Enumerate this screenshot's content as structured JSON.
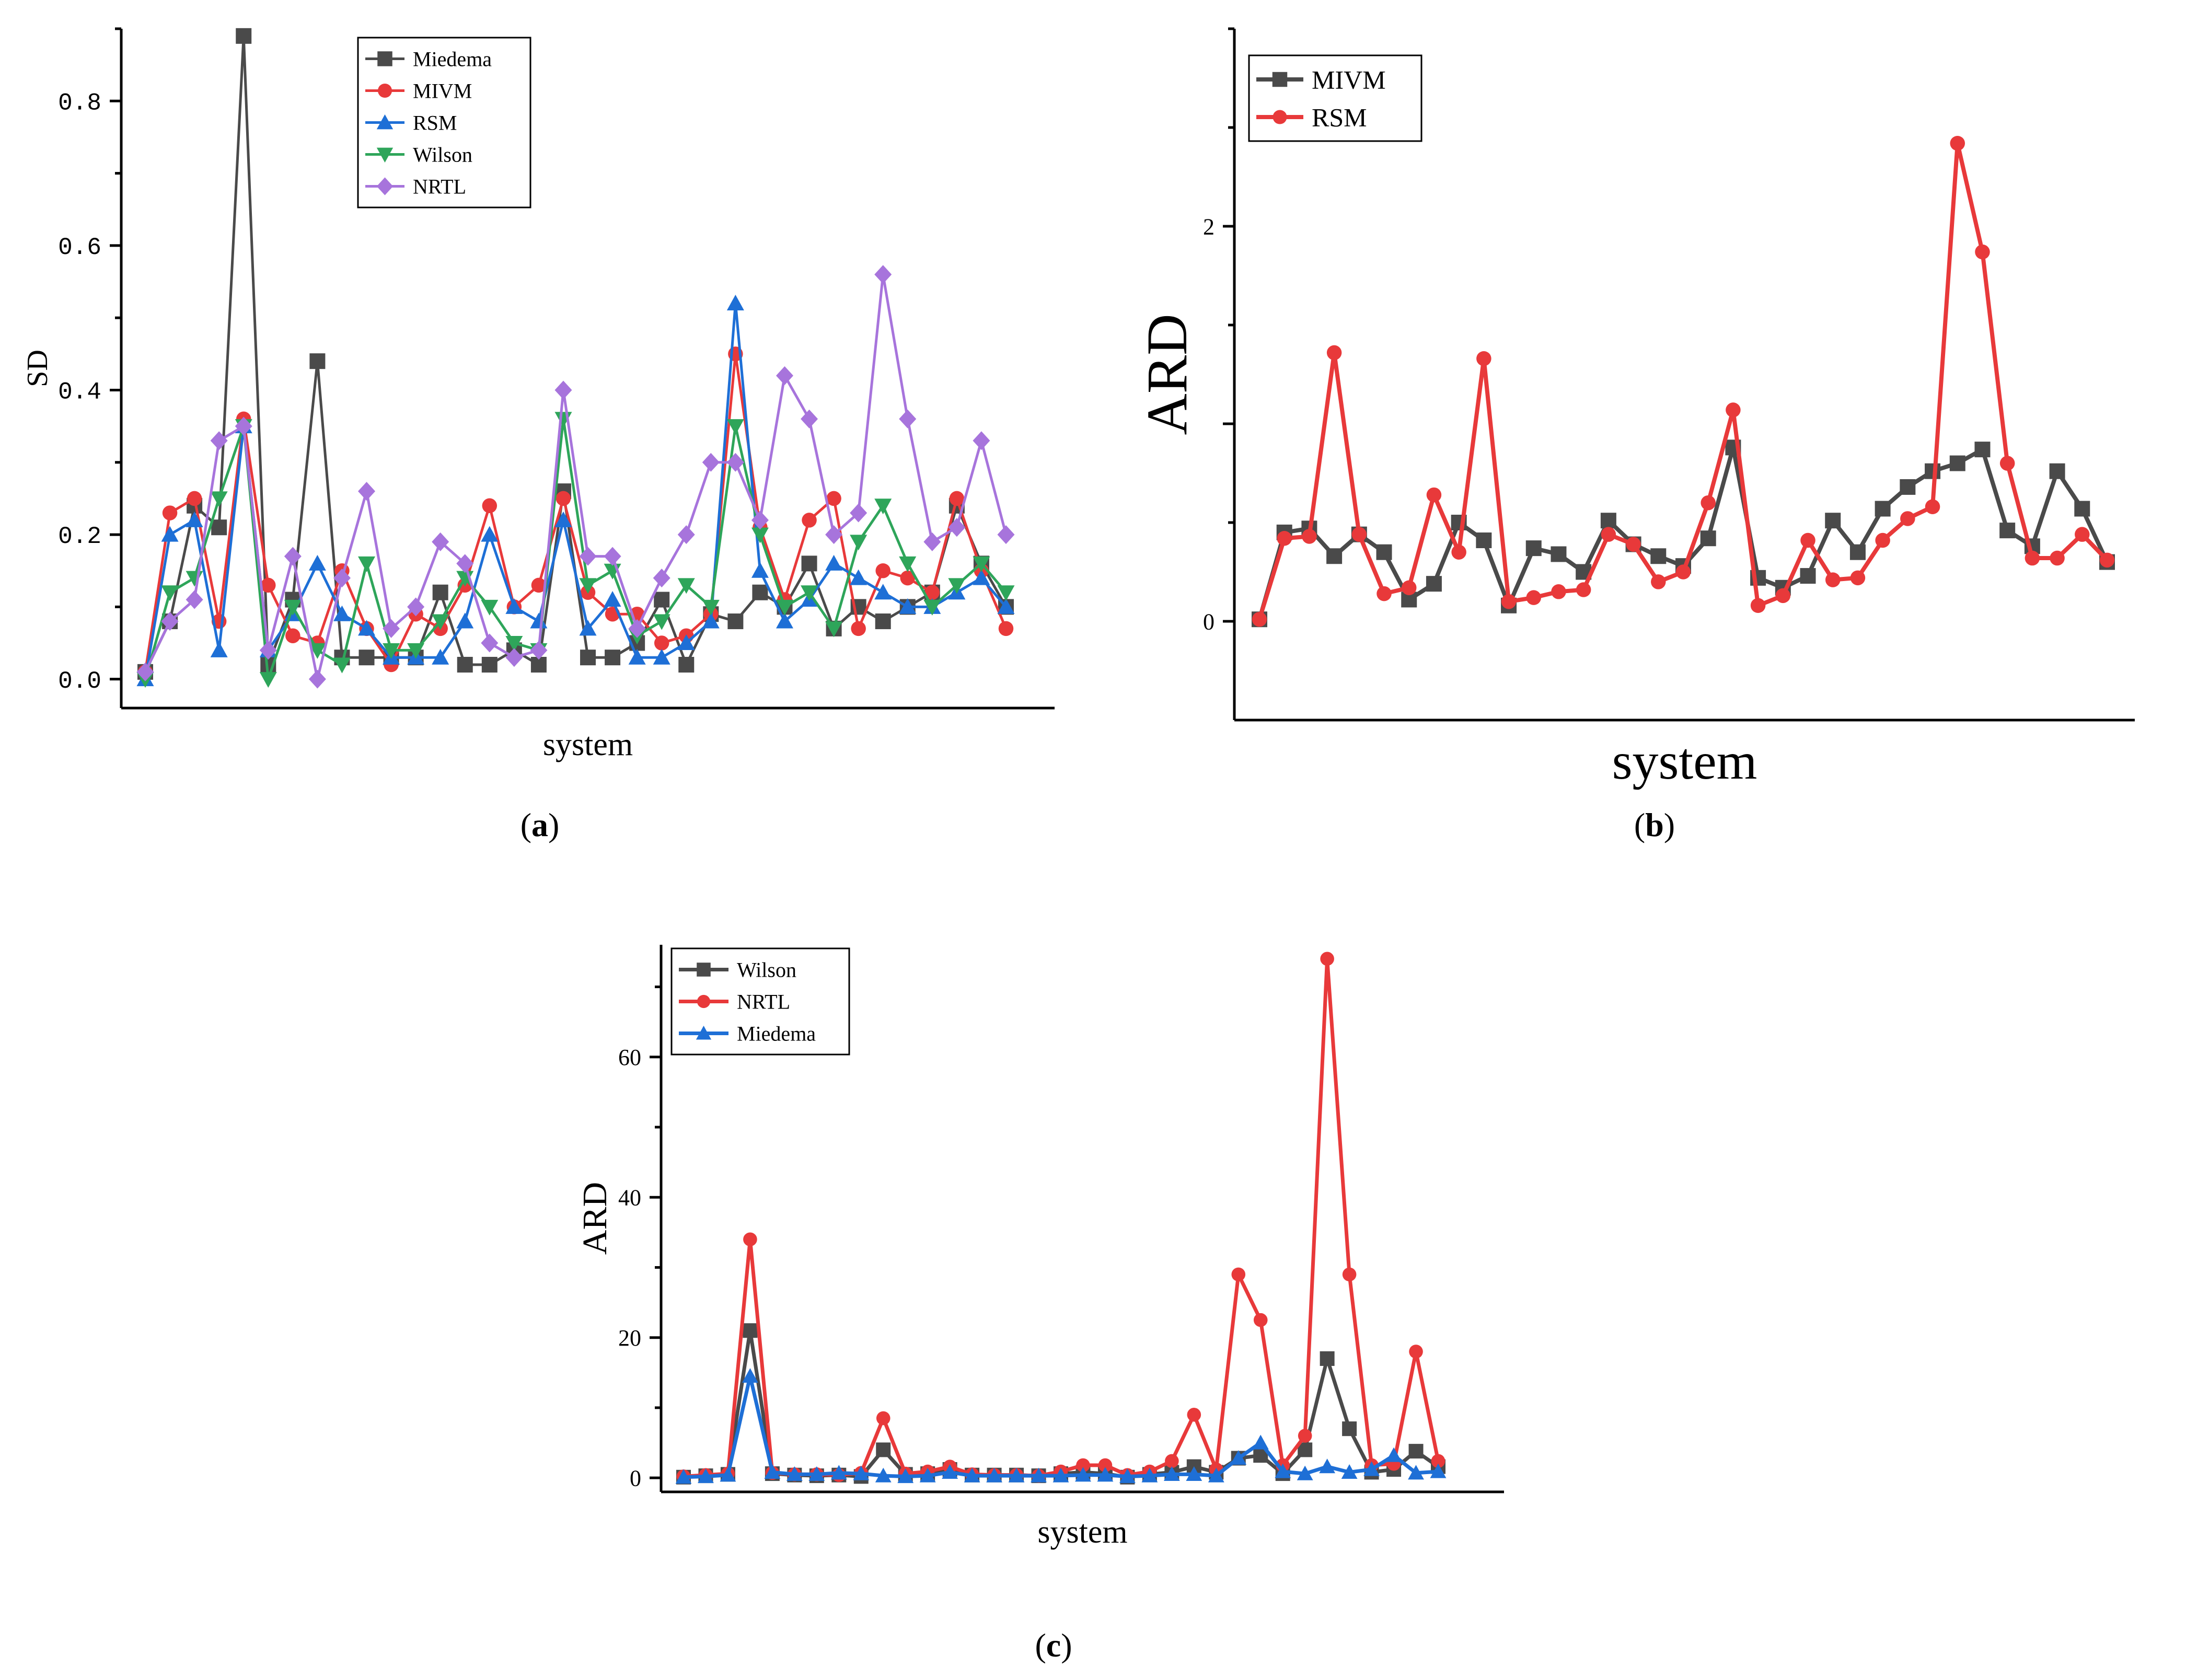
{
  "figure": {
    "captions": [
      {
        "prefix": "(",
        "letter": "a",
        "suffix": ")"
      },
      {
        "prefix": "(",
        "letter": "b",
        "suffix": ")"
      },
      {
        "prefix": "(",
        "letter": "c",
        "suffix": ")"
      }
    ]
  },
  "chart_data": [
    {
      "id": "a",
      "type": "line",
      "title": "",
      "xlabel": "system",
      "ylabel": "SD",
      "ylim": [
        -0.04,
        0.9
      ],
      "yticks": [
        0.0,
        0.2,
        0.4,
        0.6,
        0.8
      ],
      "ytick_labels": [
        "0.0",
        "0.2",
        "0.4",
        "0.6",
        "0.8"
      ],
      "legend": "top-center",
      "series": [
        {
          "name": "Miedema",
          "color": "#4a4a4a",
          "marker": "square",
          "values": [
            0.01,
            0.08,
            0.24,
            0.21,
            0.89,
            0.02,
            0.11,
            0.44,
            0.03,
            0.03,
            0.03,
            0.03,
            0.12,
            0.02,
            0.02,
            0.04,
            0.02,
            0.26,
            0.03,
            0.03,
            0.05,
            0.11,
            0.02,
            0.09,
            0.08,
            0.12,
            0.1,
            0.16,
            0.07,
            0.1,
            0.08,
            0.1,
            0.12,
            0.24,
            0.16,
            0.1
          ]
        },
        {
          "name": "MIVM",
          "color": "#e8393a",
          "marker": "circle",
          "values": [
            0.01,
            0.23,
            0.25,
            0.08,
            0.36,
            0.13,
            0.06,
            0.05,
            0.15,
            0.07,
            0.02,
            0.09,
            0.07,
            0.13,
            0.24,
            0.1,
            0.13,
            0.25,
            0.12,
            0.09,
            0.09,
            0.05,
            0.06,
            0.09,
            0.45,
            0.21,
            0.11,
            0.22,
            0.25,
            0.07,
            0.15,
            0.14,
            0.12,
            0.25,
            0.15,
            0.07
          ]
        },
        {
          "name": "RSM",
          "color": "#1e6fd6",
          "marker": "triangle-up",
          "values": [
            0.0,
            0.2,
            0.22,
            0.04,
            0.35,
            0.04,
            0.09,
            0.16,
            0.09,
            0.07,
            0.03,
            0.03,
            0.03,
            0.08,
            0.2,
            0.1,
            0.08,
            0.22,
            0.07,
            0.11,
            0.03,
            0.03,
            0.05,
            0.08,
            0.52,
            0.15,
            0.08,
            0.11,
            0.16,
            0.14,
            0.12,
            0.1,
            0.1,
            0.12,
            0.14,
            0.1
          ]
        },
        {
          "name": "Wilson",
          "color": "#2ea55a",
          "marker": "triangle-down",
          "values": [
            0.0,
            0.12,
            0.14,
            0.25,
            0.35,
            0.0,
            0.1,
            0.04,
            0.02,
            0.16,
            0.04,
            0.04,
            0.08,
            0.14,
            0.1,
            0.05,
            0.04,
            0.36,
            0.13,
            0.15,
            0.06,
            0.08,
            0.13,
            0.1,
            0.35,
            0.2,
            0.1,
            0.12,
            0.07,
            0.19,
            0.24,
            0.16,
            0.1,
            0.13,
            0.16,
            0.12
          ]
        },
        {
          "name": "NRTL",
          "color": "#a774dc",
          "marker": "diamond",
          "values": [
            0.01,
            0.08,
            0.11,
            0.33,
            0.35,
            0.04,
            0.17,
            0.0,
            0.14,
            0.26,
            0.07,
            0.1,
            0.19,
            0.16,
            0.05,
            0.03,
            0.04,
            0.4,
            0.17,
            0.17,
            0.07,
            0.14,
            0.2,
            0.3,
            0.3,
            0.22,
            0.42,
            0.36,
            0.2,
            0.23,
            0.56,
            0.36,
            0.19,
            0.21,
            0.33,
            0.2
          ]
        }
      ]
    },
    {
      "id": "b",
      "type": "line",
      "title": "",
      "xlabel": "system",
      "ylabel": "ARD",
      "ylim": [
        -0.5,
        3.0
      ],
      "yticks": [
        0,
        1,
        2
      ],
      "ytick_labels": [
        "0",
        "",
        "2"
      ],
      "legend": "top-left",
      "series": [
        {
          "name": "MIVM",
          "color": "#4a4a4a",
          "marker": "square",
          "values": [
            0.01,
            0.45,
            0.47,
            0.33,
            0.44,
            0.35,
            0.11,
            0.19,
            0.5,
            0.41,
            0.08,
            0.37,
            0.34,
            0.25,
            0.51,
            0.39,
            0.33,
            0.28,
            0.42,
            0.88,
            0.22,
            0.17,
            0.23,
            0.51,
            0.35,
            0.57,
            0.68,
            0.76,
            0.8,
            0.87,
            0.46,
            0.38,
            0.76,
            0.57,
            0.3
          ]
        },
        {
          "name": "RSM",
          "color": "#e8393a",
          "marker": "circle",
          "values": [
            0.01,
            0.42,
            0.43,
            1.36,
            0.44,
            0.14,
            0.17,
            0.64,
            0.35,
            1.33,
            0.1,
            0.12,
            0.15,
            0.16,
            0.44,
            0.39,
            0.2,
            0.25,
            0.6,
            1.07,
            0.08,
            0.13,
            0.41,
            0.21,
            0.22,
            0.41,
            0.52,
            0.58,
            2.42,
            1.87,
            0.8,
            0.32,
            0.32,
            0.44,
            0.31
          ]
        }
      ]
    },
    {
      "id": "c",
      "type": "line",
      "title": "",
      "xlabel": "system",
      "ylabel": "ARD",
      "ylim": [
        -2,
        76
      ],
      "yticks": [
        0,
        20,
        40,
        60
      ],
      "ytick_labels": [
        "0",
        "20",
        "40",
        "60"
      ],
      "legend": "top-left",
      "series": [
        {
          "name": "Wilson",
          "color": "#4a4a4a",
          "marker": "square",
          "values": [
            0.1,
            0.3,
            0.5,
            21,
            0.6,
            0.4,
            0.3,
            0.4,
            0.2,
            4.0,
            0.5,
            0.6,
            1.2,
            0.4,
            0.4,
            0.4,
            0.3,
            0.6,
            0.8,
            0.6,
            0.1,
            0.5,
            0.8,
            1.6,
            0.8,
            2.8,
            3.2,
            0.6,
            4.0,
            17,
            7.0,
            0.8,
            1.2,
            3.8,
            1.6
          ]
        },
        {
          "name": "NRTL",
          "color": "#e8393a",
          "marker": "circle",
          "values": [
            0.2,
            0.4,
            0.6,
            34,
            0.7,
            0.5,
            0.5,
            0.4,
            0.7,
            8.5,
            0.6,
            0.9,
            1.6,
            0.5,
            0.4,
            0.4,
            0.3,
            0.9,
            1.8,
            1.8,
            0.4,
            0.9,
            2.4,
            9.0,
            1.2,
            29,
            22.5,
            1.8,
            6.0,
            74,
            29,
            1.8,
            2.0,
            18,
            2.4
          ]
        },
        {
          "name": "Miedema",
          "color": "#1e6fd6",
          "marker": "triangle-up",
          "values": [
            0.1,
            0.2,
            0.4,
            14.5,
            0.8,
            0.5,
            0.5,
            0.7,
            0.6,
            0.3,
            0.2,
            0.3,
            0.8,
            0.3,
            0.3,
            0.3,
            0.3,
            0.3,
            0.4,
            0.4,
            0.2,
            0.3,
            0.5,
            0.5,
            0.3,
            2.8,
            5.0,
            0.9,
            0.6,
            1.6,
            0.8,
            1.2,
            3.2,
            0.7,
            0.9
          ]
        }
      ]
    }
  ]
}
